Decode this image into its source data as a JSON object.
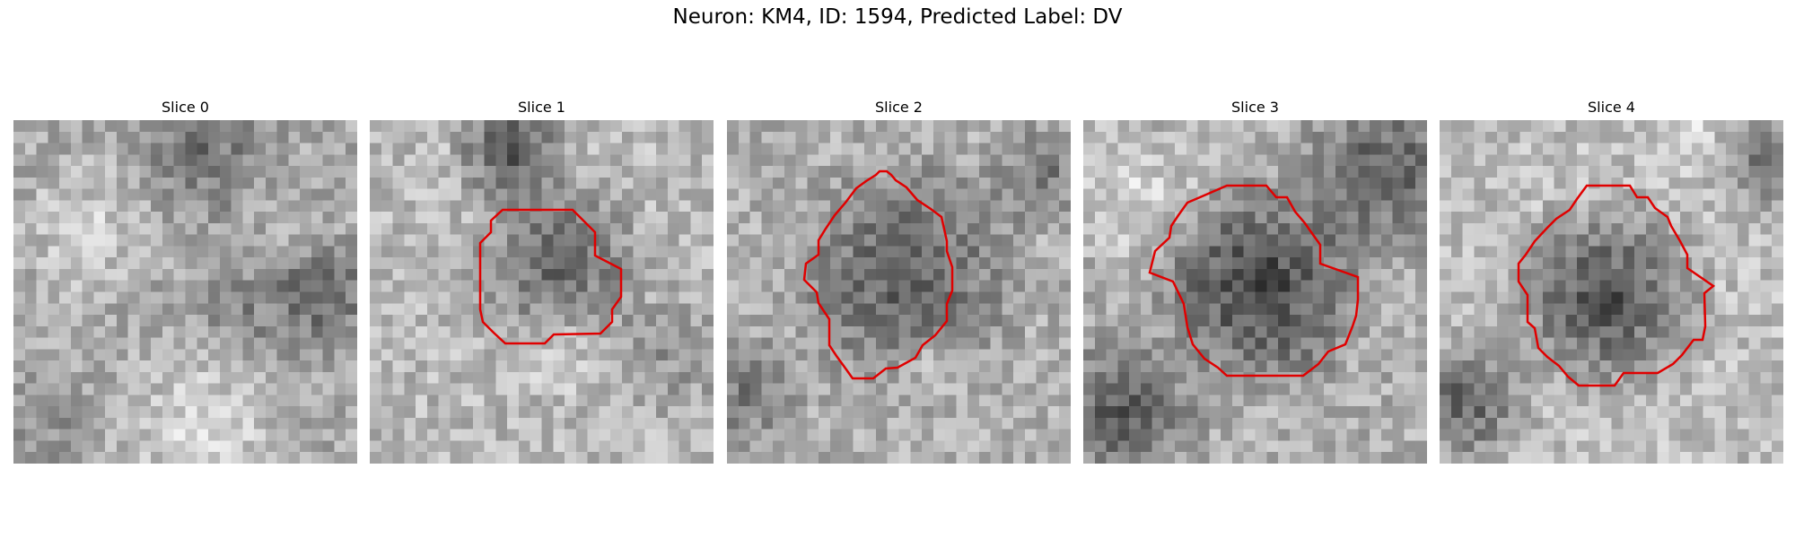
{
  "figure": {
    "title": "Neuron: KM4, ID: 1594, Predicted Label: DV"
  },
  "panels": [
    {
      "title": "Slice 0",
      "contour_color": "#e00000"
    },
    {
      "title": "Slice 1",
      "contour_color": "#e00000"
    },
    {
      "title": "Slice 2",
      "contour_color": "#e00000"
    },
    {
      "title": "Slice 3",
      "contour_color": "#e00000"
    },
    {
      "title": "Slice 4",
      "contour_color": "#e00000"
    }
  ]
}
